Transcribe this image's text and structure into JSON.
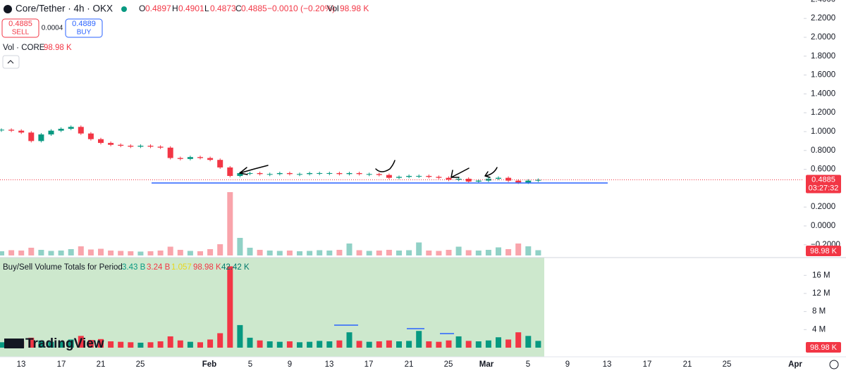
{
  "header": {
    "symbol": "Core/Tether · 4h · OKX",
    "o_label": "O",
    "open": "0.4897",
    "h_label": "H",
    "high": "0.4901",
    "l_label": "L",
    "low": "0.4873",
    "c_label": "C",
    "close": "0.4885",
    "change": "−0.0010 (−0.20%)",
    "vol_label": "Vol",
    "vol": "98.98 K"
  },
  "trade": {
    "sell_price": "0.4885",
    "sell": "SELL",
    "spread": "0.0004",
    "buy_price": "0.4889",
    "buy": "BUY"
  },
  "volume_legend": {
    "label": "Vol · CORE",
    "value": "98.98 K"
  },
  "indicator": {
    "title": "Buy/Sell Volume Totals for Period",
    "buy": "3.43 B",
    "sell": "3.24 B",
    "ratio": "1.057",
    "last": "98.98 K",
    "delta": "42.42 K"
  },
  "price_tag": {
    "price": "0.4885",
    "countdown": "03:27:32"
  },
  "volume_tag": "98.98 K",
  "indicator_tag": "98.98 K",
  "logo": "TradingView",
  "chart": {
    "price_ticks": [
      {
        "value": 2.4,
        "label": "2.4000"
      },
      {
        "value": 2.2,
        "label": "2.2000"
      },
      {
        "value": 2.0,
        "label": "2.0000"
      },
      {
        "value": 1.8,
        "label": "1.8000"
      },
      {
        "value": 1.6,
        "label": "1.6000"
      },
      {
        "value": 1.4,
        "label": "1.4000"
      },
      {
        "value": 1.2,
        "label": "1.2000"
      },
      {
        "value": 1.0,
        "label": "1.0000"
      },
      {
        "value": 0.8,
        "label": "0.8000"
      },
      {
        "value": 0.6,
        "label": "0.6000"
      },
      {
        "value": 0.2,
        "label": "0.2000"
      },
      {
        "value": 0,
        "label": "0.0000"
      },
      {
        "value": -0.2,
        "label": "−0.2000"
      }
    ],
    "volume_ticks": [
      {
        "value": 16,
        "label": "16 M"
      },
      {
        "value": 12,
        "label": "12 M"
      },
      {
        "value": 8,
        "label": "8 M"
      },
      {
        "value": 4,
        "label": "4 M"
      }
    ],
    "time_labels": [
      "13",
      "17",
      "21",
      "25",
      "Feb",
      "5",
      "9",
      "13",
      "17",
      "21",
      "25",
      "Mar",
      "5",
      "9",
      "13",
      "17",
      "21",
      "25",
      "Apr"
    ],
    "closes": [
      1.02,
      1.01,
      0.99,
      0.9,
      0.97,
      1.01,
      1.03,
      1.05,
      0.98,
      0.92,
      0.88,
      0.86,
      0.85,
      0.84,
      0.85,
      0.84,
      0.83,
      0.72,
      0.71,
      0.73,
      0.72,
      0.7,
      0.62,
      0.53,
      0.56,
      0.56,
      0.55,
      0.55,
      0.56,
      0.55,
      0.55,
      0.56,
      0.56,
      0.56,
      0.55,
      0.56,
      0.55,
      0.55,
      0.54,
      0.51,
      0.52,
      0.53,
      0.53,
      0.52,
      0.51,
      0.49,
      0.5,
      0.47,
      0.48,
      0.5,
      0.51,
      0.48,
      0.46,
      0.48,
      0.4885
    ],
    "volumes": [
      1.2,
      1.5,
      1.4,
      2.2,
      1.6,
      1.3,
      1.4,
      1.8,
      2.6,
      1.7,
      1.9,
      1.4,
      1.3,
      1.2,
      1.1,
      1.2,
      1.4,
      2.5,
      1.6,
      1.3,
      1.2,
      1.8,
      3.2,
      18,
      5,
      2.2,
      1.6,
      1.4,
      1.3,
      1.4,
      1.2,
      1.3,
      1.5,
      1.4,
      1.6,
      3.4,
      1.5,
      1.3,
      1.4,
      1.6,
      1.4,
      1.5,
      3.7,
      1.4,
      1.3,
      1.6,
      2.5,
      1.5,
      1.4,
      1.6,
      2.3,
      1.8,
      3.4,
      2.6,
      1.5
    ]
  }
}
